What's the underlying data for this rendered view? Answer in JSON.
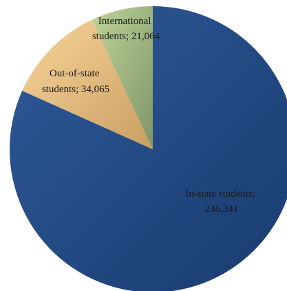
{
  "chart_data": {
    "type": "pie",
    "slices": [
      {
        "label": "In-state students",
        "value": 246341,
        "value_text": "246,341",
        "color_start": "#2f5a97",
        "color_end": "#183a70"
      },
      {
        "label": "Out-of-state students",
        "value": 34065,
        "value_text": "34,065",
        "color_start": "#f8d59a",
        "color_end": "#c99e63"
      },
      {
        "label": "International students",
        "value": 21064,
        "value_text": "21,064",
        "color_start": "#bfd59a",
        "color_end": "#7f9467"
      }
    ]
  }
}
